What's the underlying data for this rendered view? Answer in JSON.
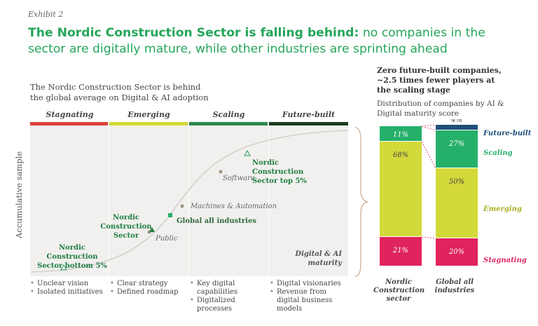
{
  "exhibit": "Exhibit 2",
  "headline": {
    "bold": "The Nordic Construction Sector is falling behind:",
    "rest": " no companies in the sector are digitally mature, while other industries are sprinting ahead"
  },
  "left_title": "The Nordic Construction Sector is behind the global average on Digital & AI adoption",
  "y_axis_label": "Accumulative sample",
  "x_axis_label": "Digital & AI maturity",
  "stages": [
    {
      "label": "Stagnating",
      "color": "#d9433c",
      "bullets": [
        "Unclear vision",
        "Isolated initiatives"
      ]
    },
    {
      "label": "Emerging",
      "color": "#d4d93a",
      "bullets": [
        "Clear strategy",
        "Defined roadmap"
      ]
    },
    {
      "label": "Scaling",
      "color": "#2d8a4e",
      "bullets": [
        "Key digital capabilities",
        "Digitalized processes"
      ]
    },
    {
      "label": "Future-built",
      "color": "#1b3d22",
      "bullets": [
        "Digital visionaries",
        "Revenue from digital business models"
      ]
    }
  ],
  "curve_points": {
    "ncs_bottom": "Nordic Construction Sector bottom 5%",
    "public": "Public",
    "ncs": "Nordic Construction Sector",
    "global": "Global all industries",
    "machines": "Machines & Automation",
    "software": "Software",
    "ncs_top": "Nordic Construction Sector top 5%"
  },
  "right_title": "Zero future-built companies, ~2.5 times fewer players at the scaling stage",
  "right_subtitle": "Distribution of companies by AI & Digital maturity score",
  "chart_data": {
    "type": "bar",
    "stacked": true,
    "percent": true,
    "title": "Distribution of companies by AI & Digital maturity score",
    "categories": [
      "Nordic Construction sector",
      "Global all industries"
    ],
    "series": [
      {
        "name": "Stagnating",
        "color": "#e0245e",
        "values": [
          21,
          20
        ]
      },
      {
        "name": "Emerging",
        "color": "#d4d93a",
        "values": [
          68,
          50
        ]
      },
      {
        "name": "Scaling",
        "color": "#25b06a",
        "values": [
          11,
          27
        ]
      },
      {
        "name": "Future-built",
        "color": "#1f4e79",
        "values": [
          0,
          4
        ]
      }
    ],
    "value_labels": [
      [
        "21%",
        "68%",
        "11%",
        ""
      ],
      [
        "20%",
        "50%",
        "27%",
        "4%"
      ]
    ],
    "legend_placement": "right",
    "ylim": [
      0,
      100
    ]
  }
}
